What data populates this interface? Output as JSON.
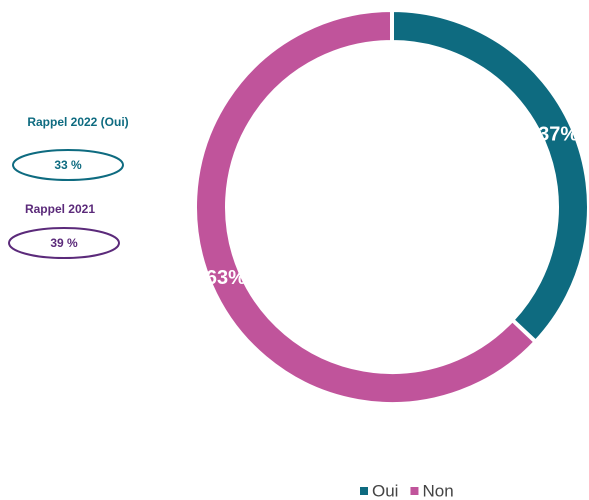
{
  "chart_data": {
    "type": "donut",
    "categories": [
      "Oui",
      "Non"
    ],
    "values": [
      37,
      63
    ],
    "value_labels": [
      "37%",
      "63%"
    ],
    "colors": [
      "#0e6b80",
      "#c0549b"
    ],
    "legend": "bottom",
    "annotations": [
      {
        "title": "Rappel 2022 (Oui)",
        "value": "33 %",
        "color": "#0e6b80"
      },
      {
        "title": "Rappel 2021",
        "value": "39 %",
        "color": "#5b2a7a"
      }
    ]
  }
}
